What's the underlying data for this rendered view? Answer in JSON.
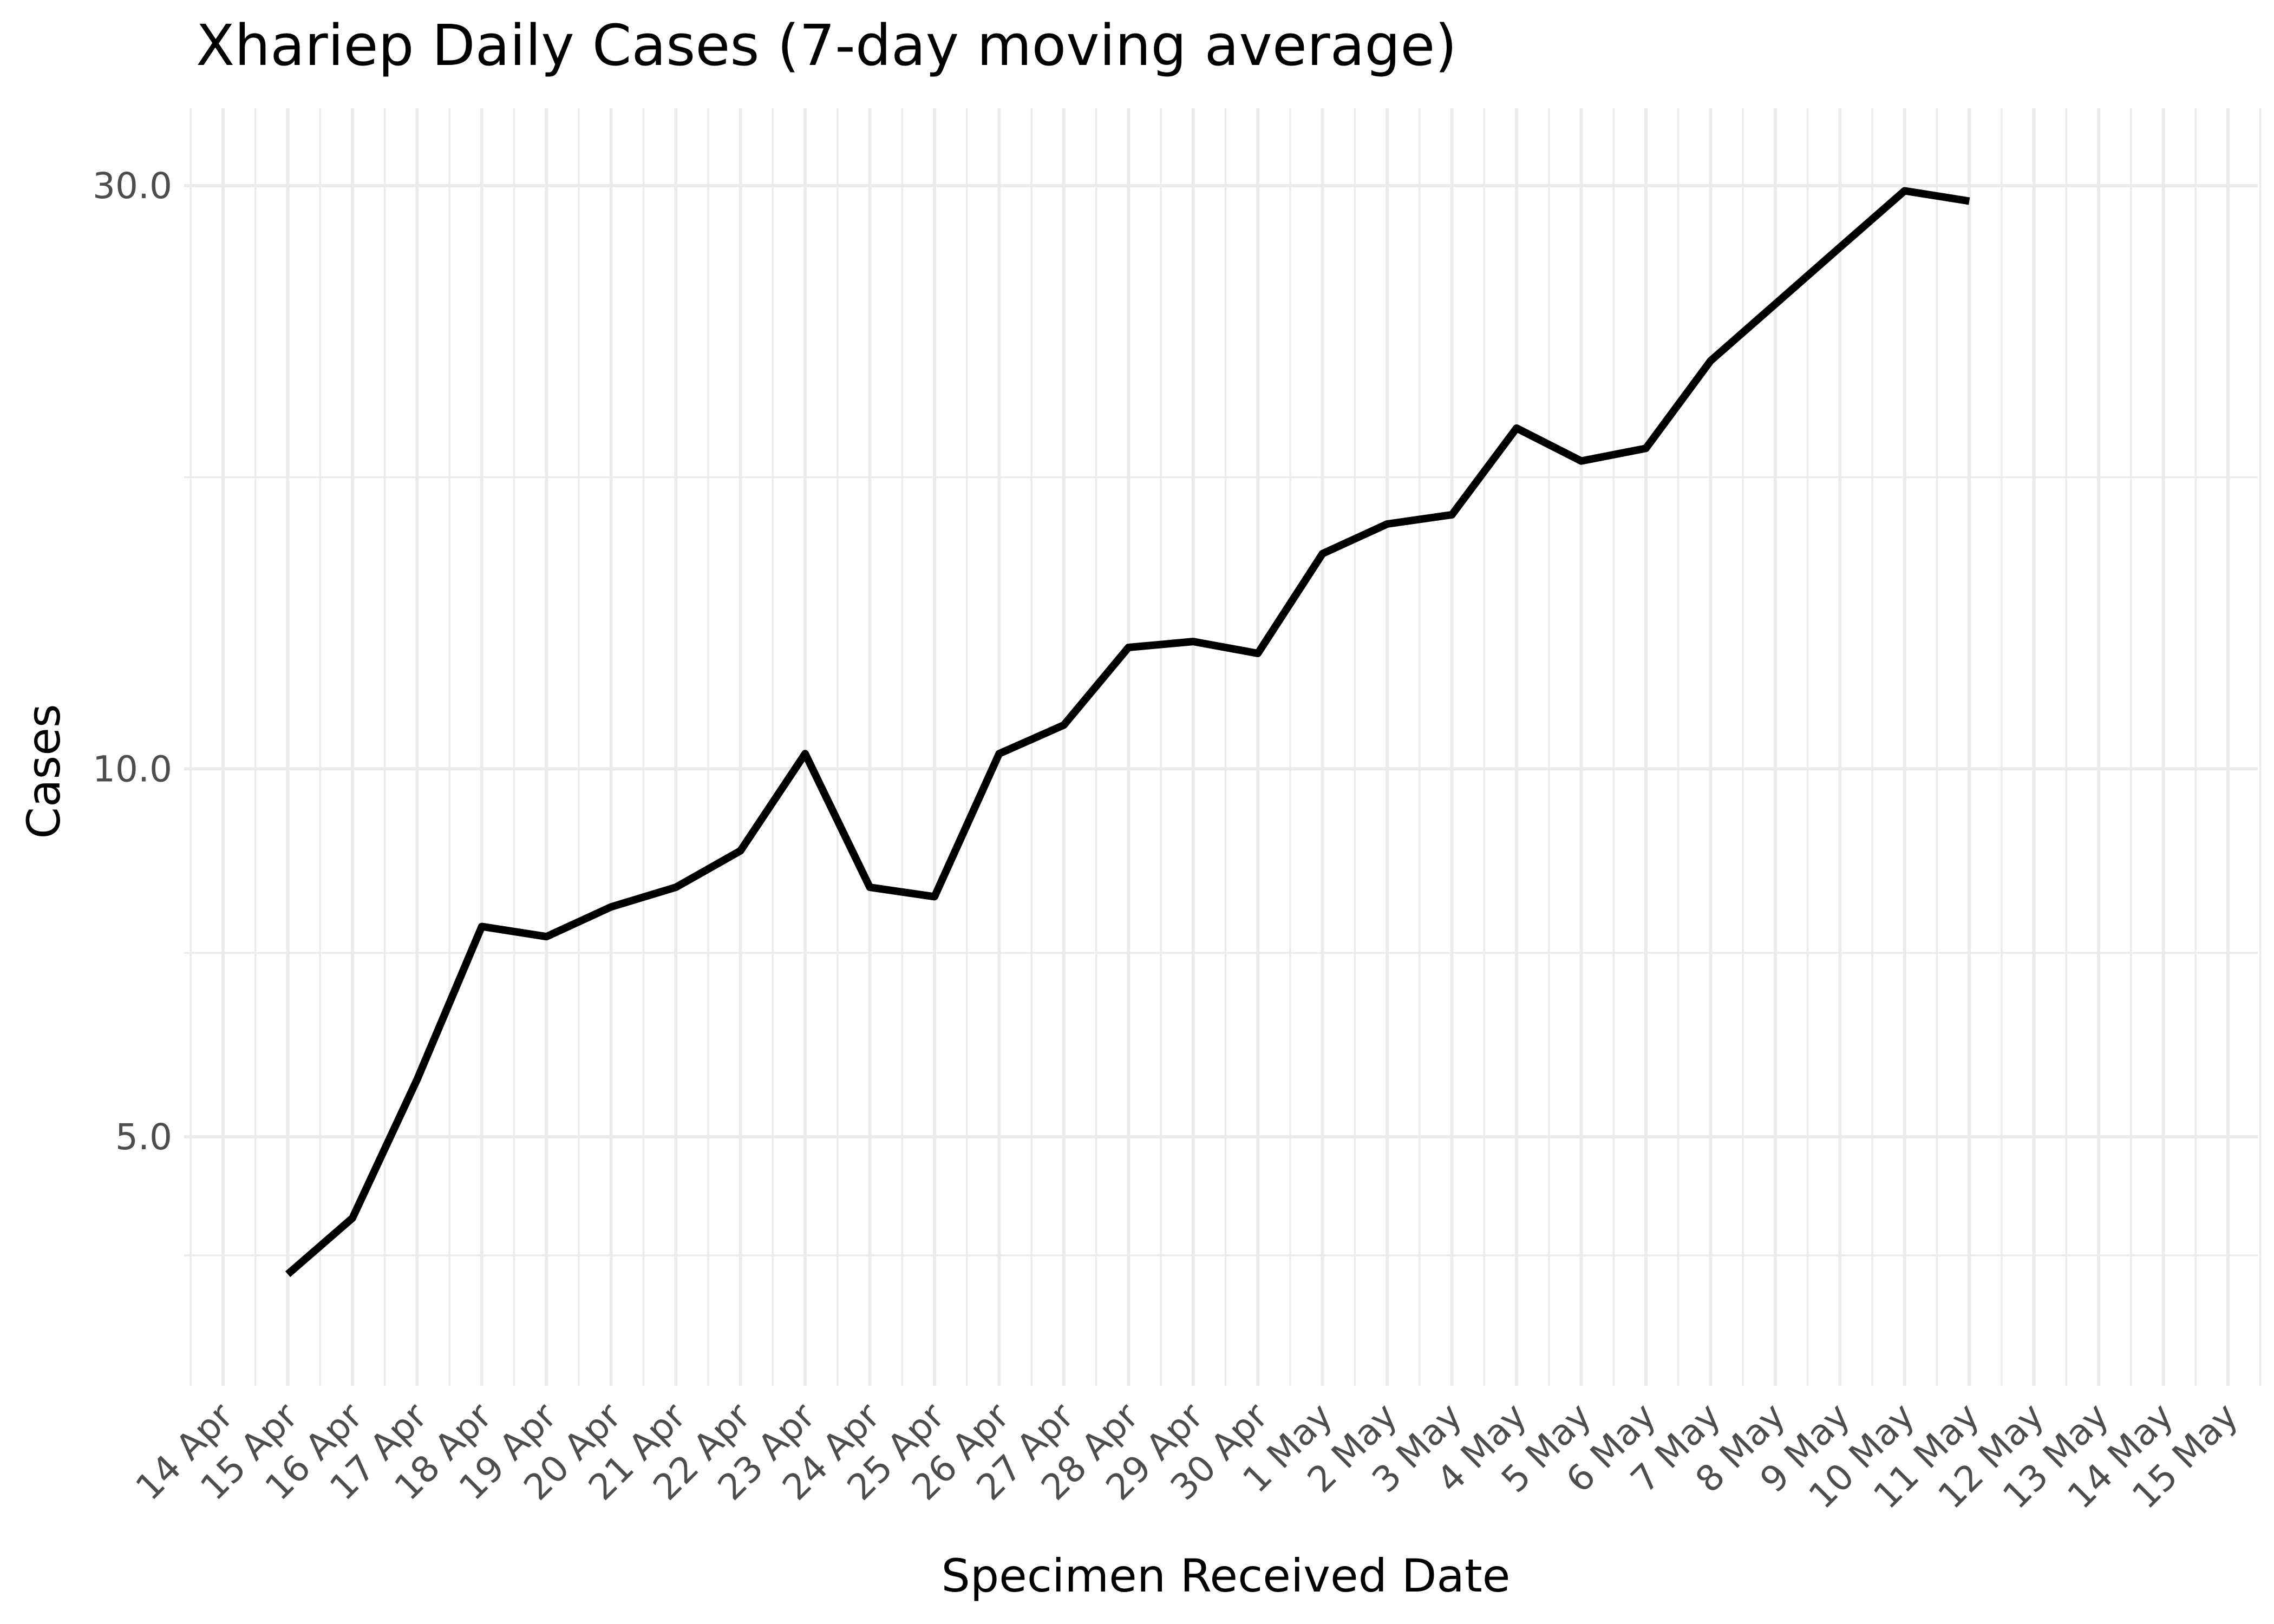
{
  "chart_data": {
    "type": "line",
    "title": "Xhariep Daily Cases (7-day moving average)",
    "xlabel": "Specimen Received Date",
    "ylabel": "Cases",
    "y_scale": "log10",
    "ylim": [
      3.8,
      33.5
    ],
    "y_ticks": [
      {
        "value": 5,
        "label": "5.0"
      },
      {
        "value": 10,
        "label": "10.0"
      },
      {
        "value": 30,
        "label": "30.0"
      }
    ],
    "y_minor_ticks": [
      4.0,
      7.07,
      17.32
    ],
    "x_range": [
      "2020-04-13",
      "2020-05-15"
    ],
    "x_ticks": [
      {
        "date": "2020-04-14",
        "label": "14 Apr"
      },
      {
        "date": "2020-04-15",
        "label": "15 Apr"
      },
      {
        "date": "2020-04-16",
        "label": "16 Apr"
      },
      {
        "date": "2020-04-17",
        "label": "17 Apr"
      },
      {
        "date": "2020-04-18",
        "label": "18 Apr"
      },
      {
        "date": "2020-04-19",
        "label": "19 Apr"
      },
      {
        "date": "2020-04-20",
        "label": "20 Apr"
      },
      {
        "date": "2020-04-21",
        "label": "21 Apr"
      },
      {
        "date": "2020-04-22",
        "label": "22 Apr"
      },
      {
        "date": "2020-04-23",
        "label": "23 Apr"
      },
      {
        "date": "2020-04-24",
        "label": "24 Apr"
      },
      {
        "date": "2020-04-25",
        "label": "25 Apr"
      },
      {
        "date": "2020-04-26",
        "label": "26 Apr"
      },
      {
        "date": "2020-04-27",
        "label": "27 Apr"
      },
      {
        "date": "2020-04-28",
        "label": "28 Apr"
      },
      {
        "date": "2020-04-29",
        "label": "29 Apr"
      },
      {
        "date": "2020-04-30",
        "label": "30 Apr"
      },
      {
        "date": "2020-05-01",
        "label": "1 May"
      },
      {
        "date": "2020-05-02",
        "label": "2 May"
      },
      {
        "date": "2020-05-03",
        "label": "3 May"
      },
      {
        "date": "2020-05-04",
        "label": "4 May"
      },
      {
        "date": "2020-05-05",
        "label": "5 May"
      },
      {
        "date": "2020-05-06",
        "label": "6 May"
      },
      {
        "date": "2020-05-07",
        "label": "7 May"
      },
      {
        "date": "2020-05-08",
        "label": "8 May"
      },
      {
        "date": "2020-05-09",
        "label": "9 May"
      },
      {
        "date": "2020-05-10",
        "label": "10 May"
      },
      {
        "date": "2020-05-11",
        "label": "11 May"
      },
      {
        "date": "2020-05-12",
        "label": "12 May"
      },
      {
        "date": "2020-05-13",
        "label": "13 May"
      },
      {
        "date": "2020-05-14",
        "label": "14 May"
      },
      {
        "date": "2020-05-15",
        "label": "15 May"
      }
    ],
    "grid": true,
    "legend": "none",
    "series": [
      {
        "color": "#000000",
        "points": [
          {
            "x": "2020-04-15",
            "y": 3.86
          },
          {
            "x": "2020-04-16",
            "y": 4.29
          },
          {
            "x": "2020-04-17",
            "y": 5.57
          },
          {
            "x": "2020-04-18",
            "y": 7.43
          },
          {
            "x": "2020-04-19",
            "y": 7.29
          },
          {
            "x": "2020-04-20",
            "y": 7.71
          },
          {
            "x": "2020-04-21",
            "y": 8.0
          },
          {
            "x": "2020-04-22",
            "y": 8.57
          },
          {
            "x": "2020-04-23",
            "y": 10.29
          },
          {
            "x": "2020-04-24",
            "y": 8.0
          },
          {
            "x": "2020-04-25",
            "y": 7.86
          },
          {
            "x": "2020-04-26",
            "y": 10.29
          },
          {
            "x": "2020-04-27",
            "y": 10.86
          },
          {
            "x": "2020-04-28",
            "y": 12.57
          },
          {
            "x": "2020-04-29",
            "y": 12.71
          },
          {
            "x": "2020-04-30",
            "y": 12.43
          },
          {
            "x": "2020-05-01",
            "y": 15.0
          },
          {
            "x": "2020-05-02",
            "y": 15.86
          },
          {
            "x": "2020-05-03",
            "y": 16.14
          },
          {
            "x": "2020-05-04",
            "y": 19.0
          },
          {
            "x": "2020-05-05",
            "y": 17.86
          },
          {
            "x": "2020-05-06",
            "y": 18.29
          },
          {
            "x": "2020-05-07",
            "y": 21.57
          },
          {
            "x": "2020-05-08",
            "y": 24.0
          },
          {
            "x": "2020-05-09",
            "y": 26.71
          },
          {
            "x": "2020-05-10",
            "y": 29.71
          },
          {
            "x": "2020-05-11",
            "y": 29.14
          }
        ]
      }
    ]
  }
}
